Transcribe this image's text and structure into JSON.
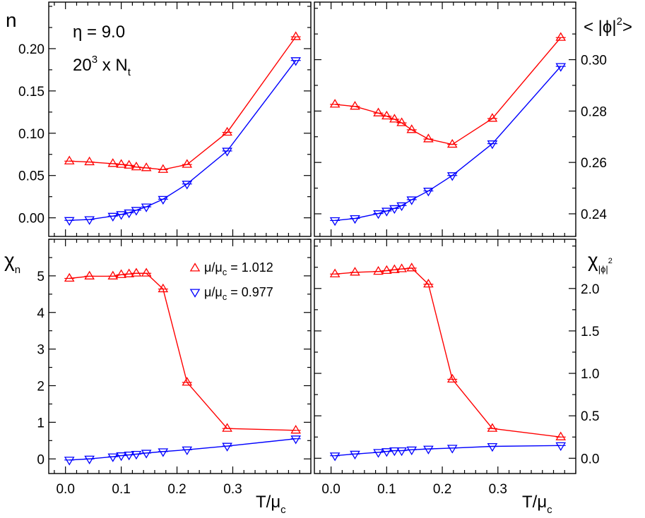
{
  "chart_data": {
    "type": "line",
    "series_styles": [
      {
        "key": "mu1012",
        "color": "#ff0000",
        "marker": "triangle-up"
      },
      {
        "key": "mu0977",
        "color": "#0000ff",
        "marker": "triangle-down"
      }
    ],
    "annotation": {
      "eta": "η = 9.0",
      "lattice_base": "20",
      "lattice_exp": "3",
      "lattice_mid": " x N",
      "lattice_sub": "t"
    },
    "legend": {
      "mu_label": "μ/μ",
      "mu_sub": "c",
      "entries": [
        {
          "value": " = 1.012"
        },
        {
          "value": " = 0.977"
        }
      ]
    },
    "xlabel": {
      "main": "T/μ",
      "sub": "c"
    },
    "xlim": [
      -0.03,
      0.44
    ],
    "xticks": [
      0.0,
      0.1,
      0.2,
      0.3
    ],
    "xtick_labels": [
      "0.0",
      "0.1",
      "0.2",
      "0.3"
    ],
    "panels": [
      {
        "id": "n",
        "ylabel": {
          "main": "n",
          "sup": "",
          "sub": "",
          "prefix": "",
          "suffix": ""
        },
        "ylim": [
          -0.022,
          0.255
        ],
        "yticks": [
          0.0,
          0.05,
          0.1,
          0.15,
          0.2
        ],
        "ytick_labels": [
          "0.00",
          "0.05",
          "0.10",
          "0.15",
          "0.20"
        ],
        "series": [
          {
            "name": "μ/μc = 1.012",
            "x": [
              0.007,
              0.043,
              0.085,
              0.1,
              0.114,
              0.127,
              0.145,
              0.175,
              0.218,
              0.29,
              0.413
            ],
            "y": [
              0.067,
              0.066,
              0.064,
              0.063,
              0.062,
              0.06,
              0.059,
              0.057,
              0.063,
              0.101,
              0.214
            ]
          },
          {
            "name": "μ/μc = 0.977",
            "x": [
              0.007,
              0.043,
              0.085,
              0.1,
              0.114,
              0.127,
              0.145,
              0.175,
              0.218,
              0.29,
              0.413
            ],
            "y": [
              -0.003,
              -0.002,
              0.002,
              0.004,
              0.006,
              0.009,
              0.013,
              0.022,
              0.04,
              0.079,
              0.186
            ]
          }
        ]
      },
      {
        "id": "phi2",
        "ylabel": {
          "main": "",
          "prefix": "< |ϕ|",
          "sup": "2",
          "suffix": ">",
          "sub": ""
        },
        "ylim": [
          0.2312,
          0.3224
        ],
        "yticks": [
          0.24,
          0.26,
          0.28,
          0.3
        ],
        "ytick_labels": [
          "0.24",
          "0.26",
          "0.28",
          "0.30"
        ],
        "series": [
          {
            "name": "μ/μc = 1.012",
            "x": [
              0.007,
              0.043,
              0.085,
              0.1,
              0.114,
              0.127,
              0.145,
              0.175,
              0.218,
              0.29,
              0.413
            ],
            "y": [
              0.2826,
              0.2818,
              0.2792,
              0.278,
              0.2768,
              0.2754,
              0.2727,
              0.2691,
              0.267,
              0.2771,
              0.3086
            ]
          },
          {
            "name": "μ/μc = 0.977",
            "x": [
              0.007,
              0.043,
              0.085,
              0.1,
              0.114,
              0.127,
              0.145,
              0.175,
              0.218,
              0.29,
              0.413
            ],
            "y": [
              0.2374,
              0.2382,
              0.2401,
              0.2411,
              0.2421,
              0.2432,
              0.2455,
              0.2489,
              0.2549,
              0.2673,
              0.2974
            ]
          }
        ]
      },
      {
        "id": "chi_n",
        "ylabel": {
          "main": "χ",
          "sub": "n",
          "sup": "",
          "prefix": "",
          "suffix": ""
        },
        "ylim": [
          -0.4,
          6.0
        ],
        "yticks": [
          0,
          1,
          2,
          3,
          4,
          5
        ],
        "ytick_labels": [
          "0",
          "1",
          "2",
          "3",
          "4",
          "5"
        ],
        "series": [
          {
            "name": "μ/μc = 1.012",
            "x": [
              0.007,
              0.043,
              0.085,
              0.1,
              0.114,
              0.127,
              0.145,
              0.175,
              0.218,
              0.29,
              0.413
            ],
            "y": [
              4.93,
              4.99,
              4.99,
              5.03,
              5.05,
              5.07,
              5.07,
              4.64,
              2.09,
              0.83,
              0.78
            ]
          },
          {
            "name": "μ/μc = 0.977",
            "x": [
              0.007,
              0.043,
              0.085,
              0.1,
              0.114,
              0.127,
              0.145,
              0.175,
              0.218,
              0.29,
              0.413
            ],
            "y": [
              -0.03,
              0.0,
              0.06,
              0.09,
              0.11,
              0.13,
              0.16,
              0.2,
              0.25,
              0.35,
              0.55
            ]
          }
        ]
      },
      {
        "id": "chi_phi",
        "ylabel": {
          "main": "χ",
          "sub": "|ϕ|",
          "sup": "2",
          "prefix": "",
          "suffix": ""
        },
        "ylim": [
          -0.18,
          2.58
        ],
        "yticks": [
          0.0,
          0.5,
          1.0,
          1.5,
          2.0
        ],
        "ytick_labels": [
          "0.0",
          "0.5",
          "1.0",
          "1.5",
          "2.0"
        ],
        "series": [
          {
            "name": "μ/μc = 1.012",
            "x": [
              0.007,
              0.043,
              0.085,
              0.1,
              0.114,
              0.127,
              0.145,
              0.175,
              0.218,
              0.29,
              0.413
            ],
            "y": [
              2.17,
              2.19,
              2.2,
              2.21,
              2.22,
              2.23,
              2.24,
              2.05,
              0.93,
              0.35,
              0.25
            ]
          },
          {
            "name": "μ/μc = 0.977",
            "x": [
              0.007,
              0.043,
              0.085,
              0.1,
              0.114,
              0.127,
              0.145,
              0.175,
              0.218,
              0.29,
              0.413
            ],
            "y": [
              0.03,
              0.05,
              0.07,
              0.08,
              0.09,
              0.09,
              0.1,
              0.11,
              0.12,
              0.14,
              0.15
            ]
          }
        ]
      }
    ]
  }
}
